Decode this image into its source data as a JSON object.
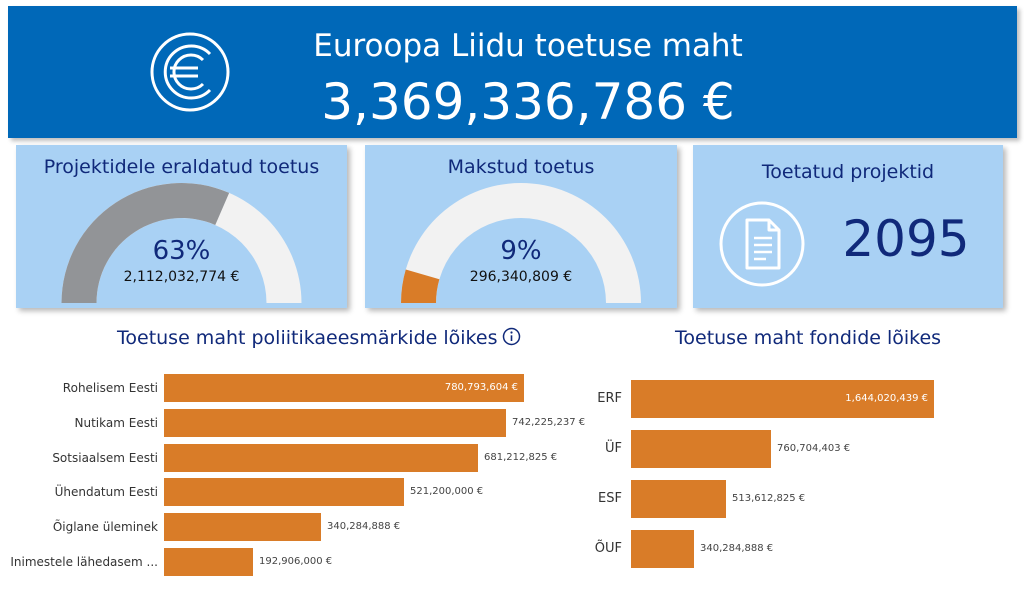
{
  "header": {
    "title": "Euroopa Liidu toetuse maht",
    "amount": "3,369,336,786 €",
    "icon": "euro-coin-icon"
  },
  "cards": {
    "allocated": {
      "title": "Projektidele eraldatud toetus",
      "percent": "63%",
      "amount": "2,112,032,774 €",
      "fill_fraction": 0.63,
      "fill_color": "#929497"
    },
    "paid": {
      "title": "Makstud toetus",
      "percent": "9%",
      "amount": "296,340,809 €",
      "fill_fraction": 0.09,
      "fill_color": "#d97c28"
    },
    "projects": {
      "title": "Toetatud projektid",
      "count": "2095",
      "icon": "document-icon"
    }
  },
  "policy_chart_title": "Toetuse maht poliitikaeesmärkide lõikes",
  "fund_chart_title": "Toetuse maht fondide lõikes",
  "chart_data": [
    {
      "type": "bar",
      "orientation": "horizontal",
      "title": "Toetuse maht poliitikaeesmärkide lõikes",
      "categories": [
        "Rohelisem Eesti",
        "Nutikam Eesti",
        "Sotsiaalsem Eesti",
        "Ühendatum Eesti",
        "Õiglane üleminek",
        "Inimestele lähedasem ..."
      ],
      "values": [
        780793604,
        742225237,
        681212825,
        521200000,
        340284888,
        192906000
      ],
      "value_labels": [
        "780,793,604 €",
        "742,225,237 €",
        "681,212,825 €",
        "521,200,000 €",
        "340,284,888 €",
        "192,906,000 €"
      ],
      "color": "#d97c28"
    },
    {
      "type": "bar",
      "orientation": "horizontal",
      "title": "Toetuse maht fondide lõikes",
      "categories": [
        "ERF",
        "ÜF",
        "ESF",
        "ÕUF"
      ],
      "values": [
        1644020439,
        760704403,
        513612825,
        340284888
      ],
      "value_labels": [
        "1,644,020,439 €",
        "760,704,403 €",
        "513,612,825 €",
        "340,284,888 €"
      ],
      "color": "#d97c28"
    }
  ]
}
